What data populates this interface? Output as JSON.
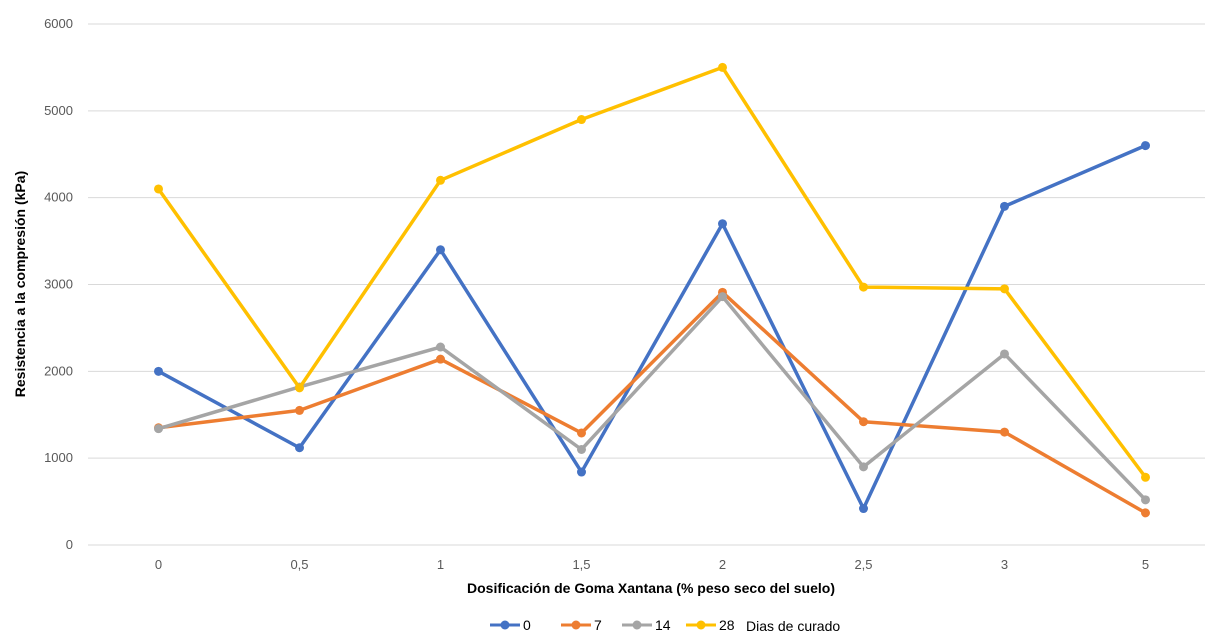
{
  "chart_data": {
    "type": "line",
    "title": "",
    "xlabel": "Dosificación de Goma Xantana (% peso seco del suelo)",
    "ylabel": "Resistencia a la compresión (kPa)",
    "categories": [
      "0",
      "0,5",
      "1",
      "1,5",
      "2",
      "2,5",
      "3",
      "5"
    ],
    "ylim": [
      0,
      6000
    ],
    "yticks": [
      "0",
      "1000",
      "2000",
      "3000",
      "4000",
      "5000",
      "6000"
    ],
    "grid": true,
    "legend_position": "bottom",
    "legend_title": "Dias de curado",
    "series": [
      {
        "name": "0",
        "color": "#4472C4",
        "values": [
          2000,
          1120,
          3400,
          840,
          3700,
          420,
          3900,
          4600
        ]
      },
      {
        "name": "7",
        "color": "#ED7D31",
        "values": [
          1350,
          1550,
          2140,
          1290,
          2910,
          1420,
          1300,
          370
        ]
      },
      {
        "name": "14",
        "color": "#A5A5A5",
        "values": [
          1340,
          1820,
          2280,
          1100,
          2860,
          900,
          2200,
          520
        ]
      },
      {
        "name": "28",
        "color": "#FFC000",
        "values": [
          4100,
          1810,
          4200,
          4900,
          5500,
          2970,
          2950,
          780
        ]
      }
    ]
  }
}
